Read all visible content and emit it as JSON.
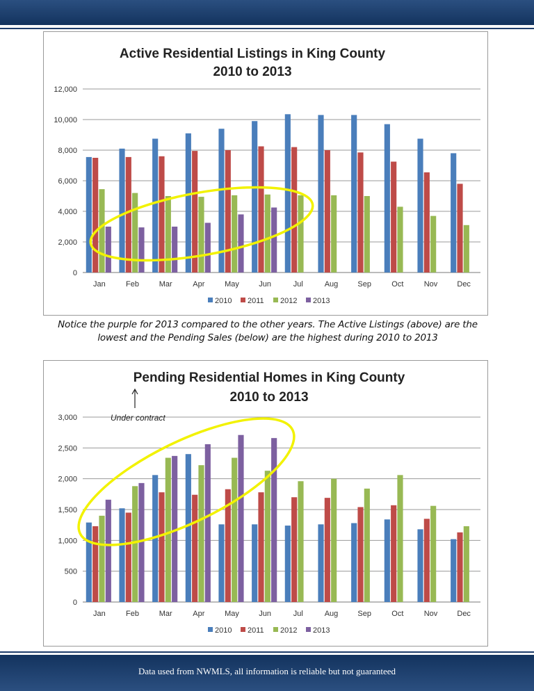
{
  "footer": {
    "text": "Data used from NWMLS, all information is reliable but not guaranteed"
  },
  "note": "Notice the purple for 2013 compared to the other years. The Active Listings (above) are the lowest and the Pending Sales (below) are the highest during 2010 to 2013",
  "annotation": {
    "under_contract": "Under contract"
  },
  "colors": {
    "2010": "#4a7ebb",
    "2011": "#be4b48",
    "2012": "#98b954",
    "2013": "#7d60a0",
    "highlight": "#f2f200",
    "header": "#1d3c6a"
  },
  "chart_data": [
    {
      "type": "bar",
      "title": [
        "Active Residential Listings in King County",
        "2010 to 2013"
      ],
      "categories": [
        "Jan",
        "Feb",
        "Mar",
        "Apr",
        "May",
        "Jun",
        "Jul",
        "Aug",
        "Sep",
        "Oct",
        "Nov",
        "Dec"
      ],
      "ylim": [
        0,
        12000
      ],
      "yticks": [
        "0",
        "2,000",
        "4,000",
        "6,000",
        "8,000",
        "10,000",
        "12,000"
      ],
      "grid": true,
      "legend": "bottom",
      "series": [
        {
          "name": "2010",
          "values": [
            7550,
            8100,
            8750,
            9100,
            9400,
            9900,
            10350,
            10300,
            10300,
            9700,
            8750,
            7800
          ]
        },
        {
          "name": "2011",
          "values": [
            7500,
            7550,
            7600,
            7950,
            8000,
            8250,
            8200,
            8000,
            7850,
            7250,
            6550,
            5800
          ]
        },
        {
          "name": "2012",
          "values": [
            5450,
            5200,
            5000,
            4950,
            5050,
            5100,
            5050,
            5050,
            5000,
            4300,
            3700,
            3100
          ]
        },
        {
          "name": "2013",
          "values": [
            3000,
            2950,
            3000,
            3250,
            3800,
            4250,
            null,
            null,
            null,
            null,
            null,
            null
          ]
        }
      ]
    },
    {
      "type": "bar",
      "title": [
        "Pending Residential Homes in King County",
        "2010 to 2013"
      ],
      "categories": [
        "Jan",
        "Feb",
        "Mar",
        "Apr",
        "May",
        "Jun",
        "Jul",
        "Aug",
        "Sep",
        "Oct",
        "Nov",
        "Dec"
      ],
      "ylim": [
        0,
        3000
      ],
      "yticks": [
        "0",
        "500",
        "1,000",
        "1,500",
        "2,000",
        "2,500",
        "3,000"
      ],
      "grid": true,
      "legend": "bottom",
      "series": [
        {
          "name": "2010",
          "values": [
            1290,
            1520,
            2060,
            2400,
            1260,
            1260,
            1240,
            1260,
            1280,
            1340,
            1180,
            1020
          ]
        },
        {
          "name": "2011",
          "values": [
            1230,
            1450,
            1780,
            1740,
            1830,
            1780,
            1700,
            1690,
            1540,
            1570,
            1350,
            1130
          ]
        },
        {
          "name": "2012",
          "values": [
            1400,
            1880,
            2340,
            2220,
            2340,
            2130,
            1960,
            2000,
            1840,
            2060,
            1560,
            1230
          ]
        },
        {
          "name": "2013",
          "values": [
            1660,
            1930,
            2370,
            2560,
            2710,
            2660,
            null,
            null,
            null,
            null,
            null,
            null
          ]
        }
      ]
    }
  ]
}
